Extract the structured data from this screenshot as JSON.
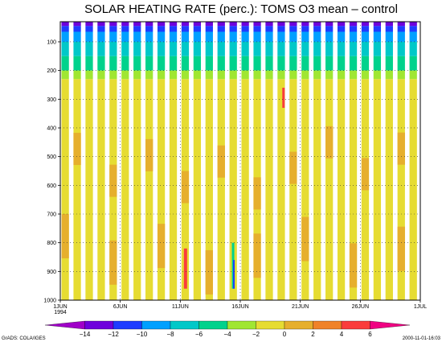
{
  "chart_data": {
    "type": "heatmap",
    "title": "SOLAR HEATING RATE (perc.): TOMS O3 mean – control",
    "xlabel": "",
    "ylabel": "",
    "x_ticks": [
      "1JUN",
      "6JUN",
      "11JUN",
      "16JUN",
      "21JUN",
      "26JUN",
      "1JUL"
    ],
    "x_tick_sublabel": "1994",
    "x_range": [
      "1JUN1994",
      "1JUL1994"
    ],
    "y_ticks": [
      100,
      200,
      300,
      400,
      500,
      600,
      700,
      800,
      900,
      1000
    ],
    "y_range": [
      1000,
      30
    ],
    "y_inverted": true,
    "grid": true,
    "colorbar": {
      "labels": [
        -14,
        -12,
        -10,
        -8,
        -6,
        -4,
        -2,
        0,
        2,
        4,
        6
      ],
      "colors": [
        "#a000c8",
        "#6e00dc",
        "#1e3cff",
        "#00a0ff",
        "#00c8c8",
        "#00d28c",
        "#a0e632",
        "#e6dc32",
        "#e6af2d",
        "#f08228",
        "#fa3c3c",
        "#f00082"
      ]
    },
    "field_description_values": {
      "upper_layer_pressure_hPa": [
        30,
        100
      ],
      "upper_layer_value_range": [
        -14,
        -10
      ],
      "mid_layer_pressure_hPa": [
        100,
        220
      ],
      "mid_layer_value_range": [
        -8,
        -2
      ],
      "lower_layer_value_range": [
        0,
        2
      ]
    }
  },
  "footer": {
    "credit_left": "GrADS: COLA/IGES",
    "credit_right": "2000-11-01-16:03"
  }
}
